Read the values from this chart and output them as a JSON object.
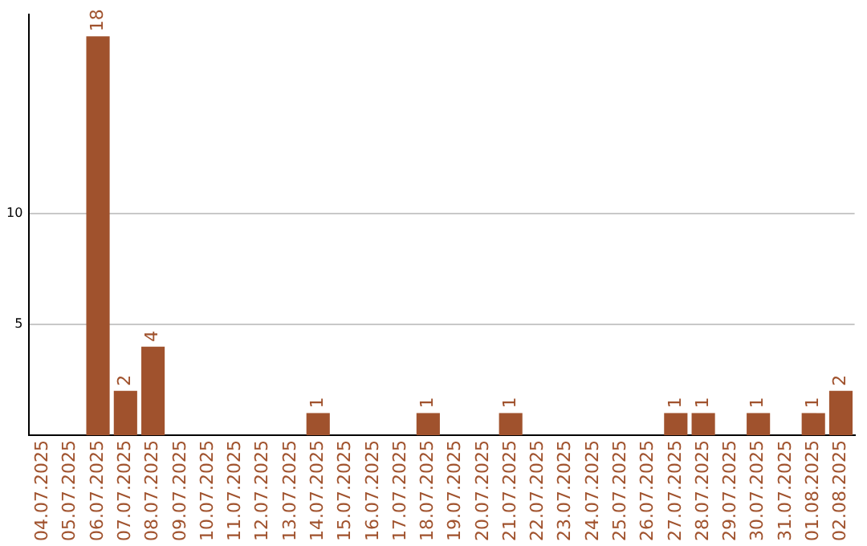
{
  "chart_data": {
    "type": "bar",
    "categories": [
      "04.07.2025",
      "05.07.2025",
      "06.07.2025",
      "07.07.2025",
      "08.07.2025",
      "09.07.2025",
      "10.07.2025",
      "11.07.2025",
      "12.07.2025",
      "13.07.2025",
      "14.07.2025",
      "15.07.2025",
      "16.07.2025",
      "17.07.2025",
      "18.07.2025",
      "19.07.2025",
      "20.07.2025",
      "21.07.2025",
      "22.07.2025",
      "23.07.2025",
      "24.07.2025",
      "25.07.2025",
      "26.07.2025",
      "27.07.2025",
      "28.07.2025",
      "29.07.2025",
      "30.07.2025",
      "31.07.2025",
      "01.08.2025",
      "02.08.2025"
    ],
    "values": [
      null,
      null,
      18,
      2,
      4,
      null,
      null,
      null,
      null,
      null,
      1,
      null,
      null,
      null,
      1,
      null,
      null,
      1,
      null,
      null,
      null,
      null,
      null,
      1,
      1,
      null,
      1,
      null,
      1,
      2
    ],
    "color": "#a0522d",
    "ylim": [
      0,
      19
    ],
    "yticks": [
      5,
      10
    ],
    "grid": "y",
    "data_labels": true,
    "legend": false
  }
}
